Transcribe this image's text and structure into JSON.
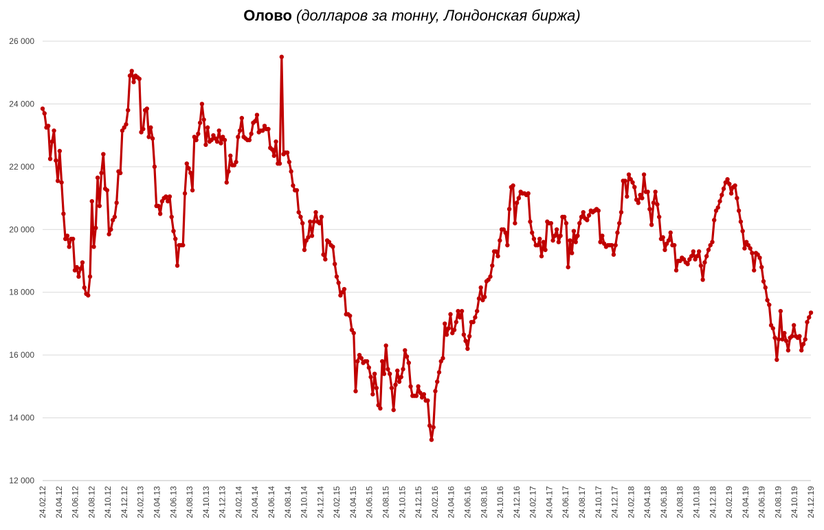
{
  "chart_data": {
    "type": "line",
    "title_main": "Олово",
    "title_sub": "(долларов за тонну, Лондонская биржа)",
    "ylim": [
      12000,
      26000
    ],
    "yticks": [
      12000,
      14000,
      16000,
      18000,
      20000,
      22000,
      24000,
      26000
    ],
    "ytick_labels": [
      "12 000",
      "14 000",
      "16 000",
      "18 000",
      "20 000",
      "22 000",
      "24 000",
      "26 000"
    ],
    "xtick_labels": [
      "24.02.12",
      "24.04.12",
      "24.06.12",
      "24.08.12",
      "24.10.12",
      "24.12.12",
      "24.02.13",
      "24.04.13",
      "24.06.13",
      "24.08.13",
      "24.10.13",
      "24.12.13",
      "24.02.14",
      "24.04.14",
      "24.06.14",
      "24.08.14",
      "24.10.14",
      "24.12.14",
      "24.02.15",
      "24.04.15",
      "24.06.15",
      "24.08.15",
      "24.10.15",
      "24.12.15",
      "24.02.16",
      "24.04.16",
      "24.06.16",
      "24.08.16",
      "24.10.16",
      "24.12.16",
      "24.02.17",
      "24.04.17",
      "24.06.17",
      "24.08.17",
      "24.10.17",
      "24.12.17",
      "24.02.18",
      "24.04.18",
      "24.06.18",
      "24.08.18",
      "24.10.18",
      "24.12.18",
      "24.02.19",
      "24.04.19",
      "24.06.19",
      "24.08.19",
      "24.10.19",
      "24.12.19"
    ],
    "grid": true,
    "legend": "none",
    "series_color": "#c00000",
    "series": [
      {
        "values": [
          23850,
          23700,
          23250,
          23300,
          22250,
          22800,
          23150,
          22200,
          21550,
          22500,
          21500,
          20500,
          19700,
          19800,
          19450,
          19700,
          19700,
          18700,
          18800,
          18500,
          18750,
          18950,
          18150,
          17950,
          17900,
          18500,
          20900,
          19450,
          20050,
          21650,
          20750,
          21800,
          22400,
          21300,
          21250,
          19850,
          20000,
          20300,
          20400,
          20850,
          21850,
          21800,
          23150,
          23250,
          23350,
          23800,
          24900,
          25050,
          24700,
          24900,
          24850,
          24800,
          23100,
          23200,
          23800,
          23850,
          22950,
          23250,
          22900,
          22000,
          20750,
          20750,
          20500,
          20900,
          21000,
          21050,
          20900,
          21050,
          20400,
          19950,
          19700,
          18850,
          19500,
          19500,
          19500,
          21150,
          22100,
          21950,
          21800,
          21250,
          22950,
          22850,
          23050,
          23400,
          24000,
          23500,
          22700,
          23250,
          22800,
          22850,
          23000,
          22900,
          22800,
          23150,
          22750,
          22950,
          22850,
          21500,
          21850,
          22350,
          22050,
          22050,
          22150,
          22950,
          23150,
          23550,
          22950,
          22900,
          22850,
          22850,
          23050,
          23400,
          23450,
          23650,
          23100,
          23150,
          23150,
          23300,
          23200,
          23200,
          22600,
          22550,
          22350,
          22800,
          22100,
          22100,
          25500,
          22400,
          22450,
          22450,
          22150,
          21850,
          21400,
          21250,
          21250,
          20550,
          20400,
          20200,
          19350,
          19650,
          19750,
          20250,
          19800,
          20250,
          20550,
          20250,
          20200,
          20400,
          19200,
          19050,
          19650,
          19600,
          19500,
          19450,
          18900,
          18500,
          18300,
          17900,
          18000,
          18100,
          17300,
          17300,
          17250,
          16800,
          16700,
          14850,
          15800,
          16000,
          15900,
          15750,
          15800,
          15800,
          15600,
          15300,
          14750,
          15400,
          14950,
          14400,
          14300,
          15800,
          15400,
          16300,
          15550,
          15400,
          14950,
          14250,
          15050,
          15500,
          15150,
          15300,
          15550,
          16150,
          15950,
          15750,
          15000,
          14700,
          14700,
          14700,
          15000,
          14800,
          14650,
          14750,
          14550,
          14550,
          13750,
          13300,
          13700,
          14850,
          15150,
          15450,
          15800,
          15900,
          17000,
          16650,
          16850,
          17300,
          16700,
          16800,
          17050,
          17400,
          17200,
          17400,
          16650,
          16450,
          16200,
          16600,
          17050,
          17050,
          17200,
          17400,
          17800,
          18150,
          17750,
          17850,
          18350,
          18400,
          18500,
          18850,
          19300,
          19300,
          19150,
          19650,
          20000,
          20000,
          19900,
          19500,
          20650,
          21350,
          21400,
          20200,
          20850,
          21000,
          21200,
          21150,
          21150,
          21100,
          21150,
          20250,
          19900,
          19700,
          19500,
          19500,
          19700,
          19150,
          19600,
          19350,
          20250,
          20200,
          20200,
          19650,
          19800,
          20000,
          19600,
          19800,
          20400,
          20400,
          20200,
          18800,
          19650,
          19250,
          19950,
          19600,
          19800,
          20200,
          20400,
          20550,
          20350,
          20300,
          20450,
          20600,
          20550,
          20600,
          20650,
          20600,
          19600,
          19800,
          19550,
          19450,
          19500,
          19500,
          19500,
          19200,
          19500,
          19900,
          20200,
          20550,
          21550,
          21550,
          21050,
          21750,
          21600,
          21500,
          21350,
          20950,
          20850,
          21100,
          21000,
          21750,
          21200,
          21200,
          20650,
          20150,
          20850,
          21200,
          20800,
          20400,
          19700,
          19750,
          19350,
          19550,
          19650,
          19900,
          19500,
          19500,
          18700,
          19000,
          19000,
          19100,
          19050,
          18950,
          18900,
          19050,
          19150,
          19300,
          19050,
          19150,
          19300,
          18850,
          18400,
          18950,
          19150,
          19350,
          19500,
          19600,
          20300,
          20600,
          20700,
          20900,
          21100,
          21300,
          21500,
          21600,
          21450,
          21150,
          21350,
          21400,
          21000,
          20600,
          20250,
          19950,
          19400,
          19600,
          19500,
          19400,
          19250,
          18700,
          19250,
          19200,
          19100,
          18800,
          18350,
          18150,
          17750,
          17600,
          16950,
          16850,
          16550,
          15850,
          16500,
          17400,
          16500,
          16700,
          16450,
          16150,
          16550,
          16600,
          16950,
          16600,
          16550,
          16600,
          16150,
          16350,
          16500,
          17050,
          17200,
          17350
        ]
      }
    ]
  }
}
